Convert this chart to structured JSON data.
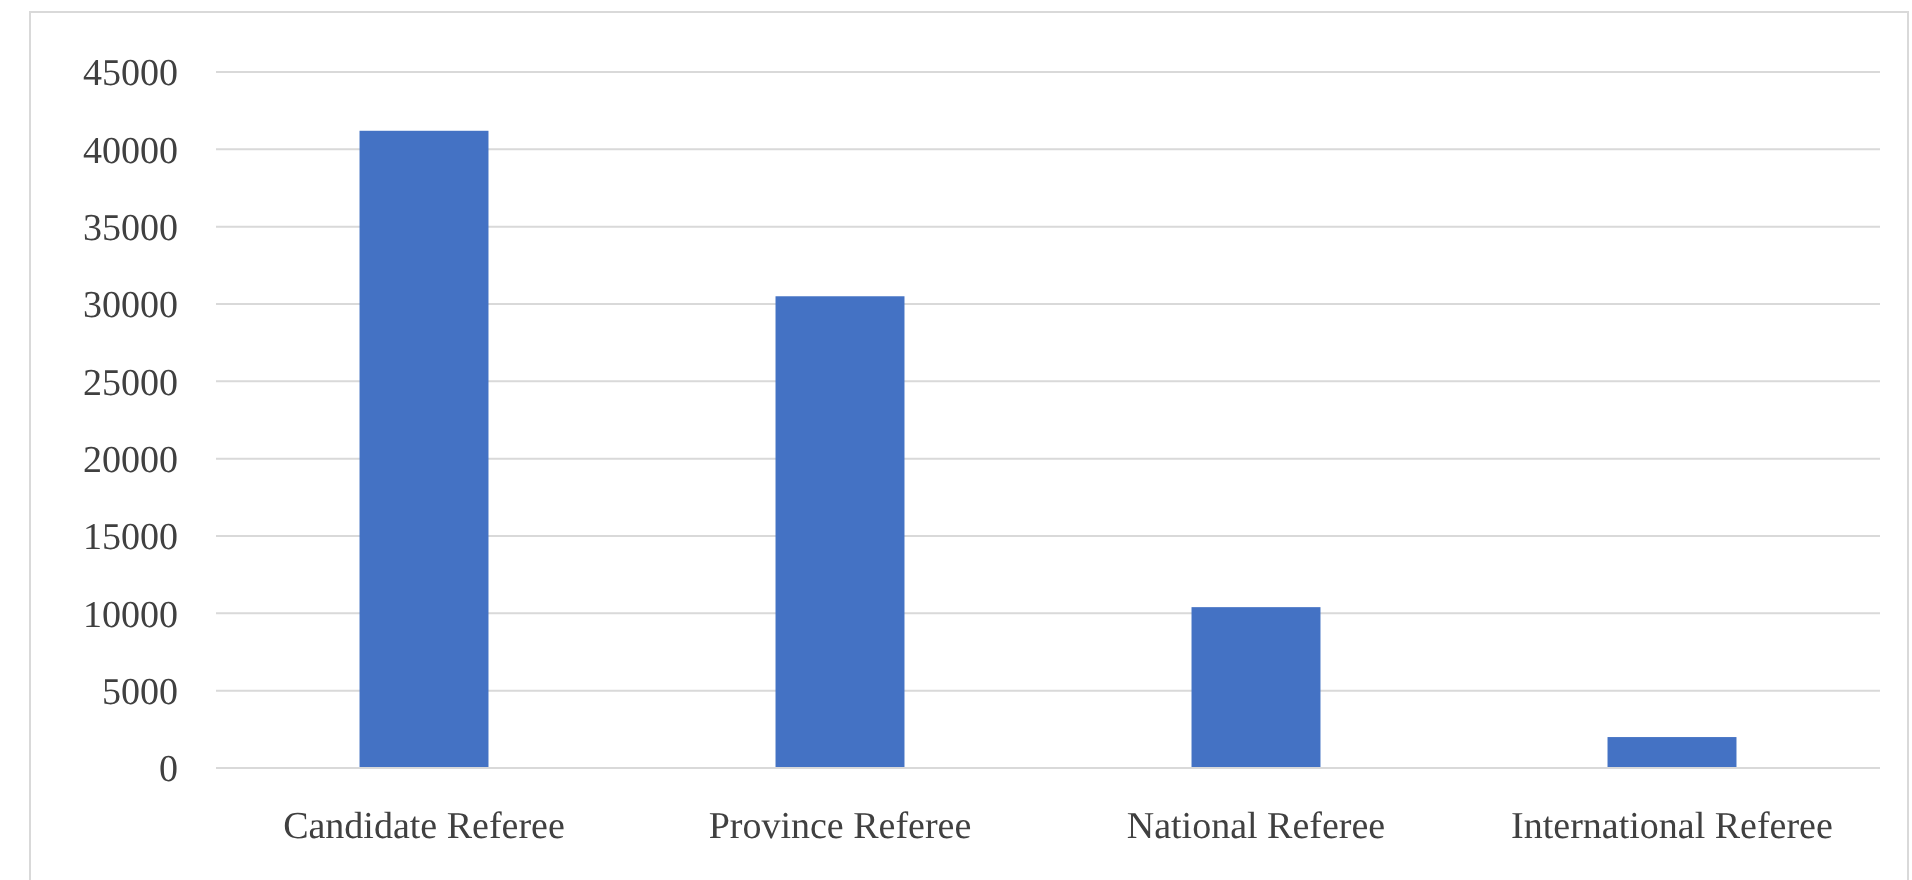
{
  "chart_data": {
    "type": "bar",
    "categories": [
      "Candidate Referee",
      "Province Referee",
      "National Referee",
      "International Referee"
    ],
    "values": [
      41200,
      30500,
      10400,
      2000
    ],
    "color": "#4472c4",
    "ylim": [
      0,
      45000
    ],
    "yticks": [
      0,
      5000,
      10000,
      15000,
      20000,
      25000,
      30000,
      35000,
      40000,
      45000
    ],
    "grid": "y"
  }
}
